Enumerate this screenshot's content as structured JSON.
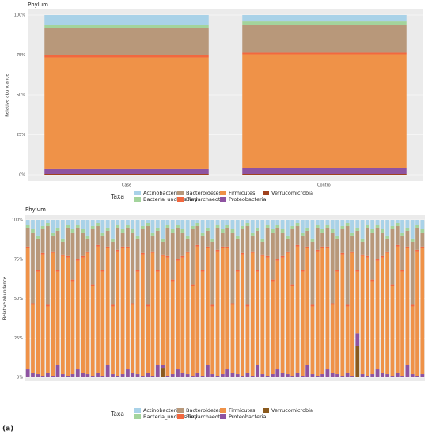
{
  "chart_data": [
    {
      "type": "stacked_bar",
      "title": "Phylum",
      "ylabel": "Relative abundance",
      "legend_title": "Taxa",
      "categories": [
        "Case",
        "Control"
      ],
      "ylim": [
        0,
        100
      ],
      "yticks": [
        {
          "value": 0,
          "label": "0%"
        },
        {
          "value": 25,
          "label": "25%"
        },
        {
          "value": 50,
          "label": "50%"
        },
        {
          "value": 75,
          "label": "75%"
        },
        {
          "value": 100,
          "label": "100%"
        }
      ],
      "series": [
        {
          "name": "Actinobacteria",
          "color": "#a9d2e8",
          "values": [
            6,
            4
          ]
        },
        {
          "name": "Bacteria_unclassified",
          "color": "#a3d49c",
          "values": [
            2,
            2
          ]
        },
        {
          "name": "Bacteroidetes",
          "color": "#b8987a",
          "values": [
            17,
            17.5
          ]
        },
        {
          "name": "Euryarchaeota",
          "color": "#f2683f",
          "values": [
            1.5,
            1
          ]
        },
        {
          "name": "Firmicutes",
          "color": "#ef9248",
          "values": [
            70,
            71.5
          ]
        },
        {
          "name": "Proteobacteria",
          "color": "#8e53a1",
          "values": [
            3,
            3.5
          ]
        },
        {
          "name": "Verrucomicrobia",
          "color": "#a0421e",
          "values": [
            0.5,
            0.5
          ]
        }
      ]
    },
    {
      "type": "stacked_bar",
      "title": "Phylum",
      "ylabel": "Relative abundance",
      "legend_title": "Taxa",
      "categories": [
        null,
        null,
        null,
        null,
        null,
        null,
        null,
        null,
        null,
        null,
        null,
        null,
        null,
        null,
        null,
        null,
        null,
        null,
        null,
        null,
        null,
        null,
        null,
        null,
        null,
        null,
        null,
        null,
        null,
        null,
        null,
        null,
        null,
        null,
        null,
        null,
        null,
        null,
        null,
        null,
        null,
        null,
        null,
        null,
        null,
        null,
        null,
        null,
        null,
        null,
        null,
        null,
        null,
        null,
        null,
        null,
        null,
        null,
        null,
        null,
        null,
        null,
        null,
        null,
        null,
        null,
        null,
        null,
        null,
        null,
        null,
        null,
        null,
        null,
        null,
        null,
        null,
        null,
        null,
        null
      ],
      "ylim": [
        0,
        100
      ],
      "yticks": [
        {
          "value": 0,
          "label": "0%"
        },
        {
          "value": 25,
          "label": "25%"
        },
        {
          "value": 50,
          "label": "50%"
        },
        {
          "value": 75,
          "label": "75%"
        },
        {
          "value": 100,
          "label": "100%"
        }
      ],
      "series": [
        {
          "name": "Actinobacteria",
          "color": "#a9d2e8",
          "values": [
            3,
            6,
            10,
            4,
            2,
            8,
            5,
            12,
            3,
            6,
            3,
            6,
            10,
            4,
            2,
            8,
            5,
            12,
            3,
            6,
            3,
            6,
            10,
            4,
            2,
            8,
            5,
            12,
            3,
            6,
            3,
            6,
            10,
            4,
            2,
            8,
            5,
            12,
            3,
            6,
            3,
            6,
            10,
            4,
            2,
            8,
            5,
            12,
            3,
            6,
            3,
            6,
            10,
            4,
            2,
            8,
            5,
            12,
            3,
            6,
            3,
            6,
            10,
            4,
            2,
            8,
            5,
            12,
            3,
            6,
            3,
            6,
            10,
            4,
            2,
            8,
            5,
            12,
            3,
            6
          ]
        },
        {
          "name": "Bacteria_unclassified",
          "color": "#a3d49c",
          "values": [
            2,
            2,
            2,
            2,
            2,
            2,
            2,
            2,
            2,
            2,
            2,
            2,
            2,
            2,
            2,
            2,
            2,
            2,
            2,
            2,
            2,
            2,
            2,
            2,
            2,
            2,
            2,
            2,
            2,
            2,
            2,
            2,
            2,
            2,
            2,
            2,
            2,
            2,
            2,
            2,
            2,
            2,
            2,
            2,
            2,
            2,
            2,
            2,
            2,
            2,
            2,
            2,
            2,
            2,
            2,
            2,
            2,
            2,
            2,
            2,
            2,
            2,
            2,
            2,
            2,
            2,
            2,
            2,
            2,
            2,
            2,
            2,
            2,
            2,
            2,
            2,
            2,
            2,
            2,
            2
          ]
        },
        {
          "name": "Bacteroidetes",
          "color": "#b8987a",
          "values": [
            12,
            45,
            20,
            15,
            50,
            10,
            25,
            8,
            18,
            30,
            20,
            15,
            8,
            35,
            12,
            22,
            10,
            40,
            14,
            9,
            12,
            45,
            20,
            15,
            50,
            10,
            25,
            8,
            18,
            30,
            20,
            15,
            8,
            35,
            12,
            22,
            10,
            40,
            14,
            9,
            12,
            45,
            20,
            15,
            50,
            10,
            25,
            8,
            18,
            30,
            20,
            15,
            8,
            35,
            12,
            22,
            10,
            40,
            14,
            9,
            12,
            45,
            20,
            15,
            50,
            10,
            25,
            8,
            18,
            30,
            20,
            15,
            8,
            35,
            12,
            22,
            10,
            40,
            14,
            9
          ]
        },
        {
          "name": "Euryarchaeota",
          "color": "#f2683f",
          "values": [
            1,
            1,
            1,
            1,
            1,
            1,
            1,
            1,
            1,
            1,
            1,
            1,
            1,
            1,
            1,
            1,
            1,
            1,
            1,
            1,
            1,
            1,
            1,
            1,
            1,
            1,
            1,
            1,
            1,
            1,
            1,
            1,
            1,
            1,
            1,
            1,
            1,
            1,
            1,
            1,
            1,
            1,
            1,
            1,
            1,
            1,
            1,
            1,
            1,
            1,
            1,
            1,
            1,
            1,
            1,
            1,
            1,
            1,
            1,
            1,
            1,
            1,
            1,
            1,
            1,
            1,
            1,
            1,
            1,
            1,
            1,
            1,
            1,
            1,
            1,
            1,
            1,
            1,
            1,
            1
          ]
        },
        {
          "name": "Firmicutes",
          "color": "#ef9248",
          "values": [
            77,
            43,
            65,
            77,
            42,
            78,
            59,
            75,
            75,
            59,
            69,
            73,
            77,
            57,
            80,
            66,
            74,
            43,
            79,
            80,
            77,
            43,
            65,
            77,
            42,
            78,
            59,
            69,
            75,
            59,
            69,
            73,
            77,
            57,
            80,
            66,
            74,
            43,
            79,
            80,
            77,
            43,
            65,
            77,
            42,
            78,
            59,
            75,
            75,
            59,
            69,
            73,
            77,
            57,
            80,
            66,
            74,
            43,
            79,
            80,
            77,
            43,
            65,
            77,
            42,
            78,
            39,
            75,
            75,
            59,
            69,
            73,
            77,
            57,
            80,
            66,
            74,
            43,
            79,
            80
          ]
        },
        {
          "name": "Proteobacteria",
          "color": "#8e53a1",
          "values": [
            5,
            3,
            2,
            1,
            3,
            1,
            8,
            2,
            1,
            2,
            5,
            3,
            2,
            1,
            3,
            1,
            8,
            2,
            1,
            2,
            5,
            3,
            2,
            1,
            3,
            1,
            8,
            2,
            1,
            2,
            5,
            3,
            2,
            1,
            3,
            1,
            8,
            2,
            1,
            2,
            5,
            3,
            2,
            1,
            3,
            1,
            8,
            2,
            1,
            2,
            5,
            3,
            2,
            1,
            3,
            1,
            8,
            2,
            1,
            2,
            5,
            3,
            2,
            1,
            3,
            1,
            8,
            2,
            1,
            2,
            5,
            3,
            2,
            1,
            3,
            1,
            8,
            2,
            1,
            2
          ]
        },
        {
          "name": "Verrucomicrobia",
          "color": "#8a5a1e",
          "values": [
            0,
            0,
            0,
            0,
            0,
            0,
            0,
            0,
            0,
            0,
            0,
            0,
            0,
            0,
            0,
            0,
            0,
            0,
            0,
            0,
            0,
            0,
            0,
            0,
            0,
            0,
            0,
            6,
            0,
            0,
            0,
            0,
            0,
            0,
            0,
            0,
            0,
            0,
            0,
            0,
            0,
            0,
            0,
            0,
            0,
            0,
            0,
            0,
            0,
            0,
            0,
            0,
            0,
            0,
            0,
            0,
            0,
            0,
            0,
            0,
            0,
            0,
            0,
            0,
            0,
            0,
            20,
            0,
            0,
            0,
            0,
            0,
            0,
            0,
            0,
            0,
            0,
            0,
            0,
            0
          ]
        }
      ]
    }
  ],
  "figure_label": "(a)"
}
